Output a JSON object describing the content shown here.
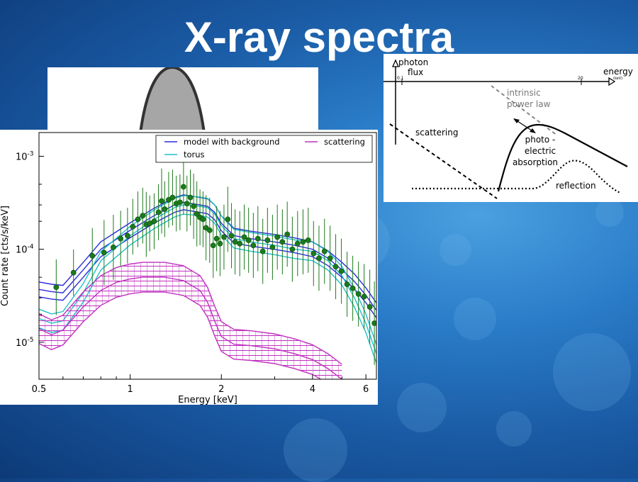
{
  "slide": {
    "title": "X-ray spectra"
  },
  "chart_data": [
    {
      "type": "line",
      "xlabel": "Energy [keV]",
      "ylabel": "Count rate [cts/s/keV]",
      "x_scale": "log",
      "y_scale": "log",
      "xlim": [
        0.5,
        6.5
      ],
      "ylim": [
        4e-06,
        0.0018
      ],
      "x_ticks": [
        {
          "value": 0.5,
          "label": "0.5"
        },
        {
          "value": 1,
          "label": "1"
        },
        {
          "value": 2,
          "label": "2"
        },
        {
          "value": 4,
          "label": "4"
        },
        {
          "value": 6,
          "label": "6"
        }
      ],
      "y_ticks": [
        {
          "value": 1e-05,
          "base": "10",
          "exp": "-5"
        },
        {
          "value": 0.0001,
          "base": "10",
          "exp": "-4"
        },
        {
          "value": 0.001,
          "base": "10",
          "exp": "-3"
        }
      ],
      "legend_position": "top-right",
      "series": [
        {
          "name": "model with background",
          "color": "#2a2adc",
          "band": 0.08,
          "x": [
            0.5,
            0.55,
            0.6,
            0.7,
            0.8,
            1.0,
            1.2,
            1.4,
            1.5,
            1.7,
            1.8,
            1.9,
            2.0,
            2.2,
            2.5,
            3.0,
            3.5,
            4.0,
            4.5,
            5.0,
            5.5,
            6.0,
            6.5
          ],
          "values": [
            3.7e-05,
            3.5e-05,
            3.4e-05,
            6e-05,
            0.0001,
            0.00016,
            0.00023,
            0.0003,
            0.00032,
            0.0003,
            0.00029,
            0.00025,
            0.00019,
            0.00014,
            0.00013,
            0.00012,
            0.00011,
            0.0001,
            8e-05,
            6e-05,
            4.5e-05,
            3.2e-05,
            2.2e-05
          ]
        },
        {
          "name": "torus",
          "color": "#20c0c8",
          "band": 0.1,
          "x": [
            0.5,
            0.55,
            0.6,
            0.7,
            0.8,
            1.0,
            1.2,
            1.4,
            1.5,
            1.7,
            1.8,
            1.9,
            2.0,
            2.2,
            2.5,
            3.0,
            3.5,
            4.0,
            4.5,
            5.0,
            5.5,
            6.0,
            6.5
          ],
          "values": [
            1.8e-05,
            1.6e-05,
            1.7e-05,
            3.4e-05,
            7.5e-05,
            0.00014,
            0.00021,
            0.00028,
            0.0003,
            0.00029,
            0.00028,
            0.00024,
            0.00018,
            0.00013,
            0.00012,
            0.00011,
            0.0001,
            9.5e-05,
            7.5e-05,
            5.2e-05,
            3e-05,
            1.6e-05,
            7.5e-06
          ]
        },
        {
          "name": "scattering",
          "color": "#c030c0",
          "band": 0.16,
          "hatched": true,
          "x": [
            0.5,
            0.55,
            0.6,
            0.7,
            0.8,
            0.9,
            1.0,
            1.1,
            1.3,
            1.5,
            1.7,
            1.8,
            1.9,
            2.0,
            2.2,
            2.5,
            3.0,
            3.5,
            4.0,
            4.5,
            5.0
          ],
          "values": [
            1.4e-05,
            1.2e-05,
            1.35e-05,
            2.4e-05,
            3.6e-05,
            4.4e-05,
            4.8e-05,
            5e-05,
            5e-05,
            4.6e-05,
            3.6e-05,
            2.7e-05,
            1.7e-05,
            1.15e-05,
            9.5e-06,
            9.2e-06,
            8.5e-06,
            7.5e-06,
            6.5e-06,
            5.2e-06,
            4e-06
          ]
        },
        {
          "name": "data",
          "color": "#1b7a1b",
          "marker": "circle",
          "errorbars": true,
          "x": [
            0.57,
            0.65,
            0.75,
            0.82,
            0.88,
            0.93,
            0.98,
            1.02,
            1.06,
            1.1,
            1.13,
            1.16,
            1.2,
            1.24,
            1.27,
            1.3,
            1.34,
            1.38,
            1.42,
            1.46,
            1.5,
            1.54,
            1.58,
            1.62,
            1.66,
            1.7,
            1.74,
            1.78,
            1.83,
            1.88,
            1.93,
            1.98,
            2.04,
            2.1,
            2.16,
            2.22,
            2.3,
            2.38,
            2.46,
            2.55,
            2.64,
            2.74,
            2.84,
            2.95,
            3.06,
            3.18,
            3.3,
            3.43,
            3.57,
            3.72,
            3.87,
            4.03,
            4.2,
            4.38,
            4.57,
            4.77,
            4.98,
            5.2,
            5.43,
            5.67,
            5.92,
            6.18,
            6.4
          ],
          "values": [
            3.9e-05,
            5.6e-05,
            8.5e-05,
            9.2e-05,
            0.000105,
            0.00013,
            0.00014,
            0.000175,
            0.00021,
            0.00023,
            0.000185,
            0.00019,
            0.0002,
            0.00025,
            0.00033,
            0.00027,
            0.00034,
            0.00036,
            0.00031,
            0.00032,
            0.00047,
            0.00031,
            0.00036,
            0.00029,
            0.00024,
            0.00022,
            0.00021,
            0.00017,
            0.00016,
            0.00011,
            0.00013,
            0.000115,
            0.000135,
            0.00021,
            0.00014,
            0.00012,
            0.000115,
            0.000135,
            0.000125,
            0.00011,
            0.00013,
            9.5e-05,
            0.000125,
            0.000105,
            0.000135,
            0.00012,
            0.000145,
            0.0001,
            0.000115,
            0.00012,
            0.000125,
            9e-05,
            8e-05,
            9.5e-05,
            8e-05,
            6.5e-05,
            5.8e-05,
            4.2e-05,
            3.8e-05,
            3.3e-05,
            3.1e-05,
            2.4e-05,
            1.6e-05
          ],
          "err": [
            0.3,
            0.25,
            0.3,
            0.35,
            0.35,
            0.3,
            0.3,
            0.3,
            0.3,
            0.3,
            0.35,
            0.3,
            0.3,
            0.3,
            0.35,
            0.3,
            0.3,
            0.3,
            0.3,
            0.3,
            0.3,
            0.3,
            0.3,
            0.35,
            0.35,
            0.3,
            0.3,
            0.35,
            0.35,
            0.35,
            0.35,
            0.35,
            0.35,
            0.35,
            0.35,
            0.35,
            0.35,
            0.35,
            0.35,
            0.35,
            0.35,
            0.35,
            0.35,
            0.35,
            0.35,
            0.35,
            0.35,
            0.35,
            0.35,
            0.35,
            0.35,
            0.35,
            0.35,
            0.35,
            0.35,
            0.35,
            0.35,
            0.35,
            0.35,
            0.35,
            0.35,
            0.4,
            0.45
          ]
        }
      ]
    },
    {
      "type": "diagram",
      "x_axis_label": "energy",
      "x_axis_unit": "(keV)",
      "y_axis_label_line1": "photon",
      "y_axis_label_line2": "flux",
      "tick_low": "0.1",
      "tick_high": "20",
      "labels": {
        "intrinsic_line1": "intrinsic",
        "intrinsic_line2": "power law",
        "scattering": "scattering",
        "photo_line1": "photo -",
        "photo_line2": "electric",
        "photo_line3": "absorption",
        "reflection": "reflection"
      }
    }
  ]
}
